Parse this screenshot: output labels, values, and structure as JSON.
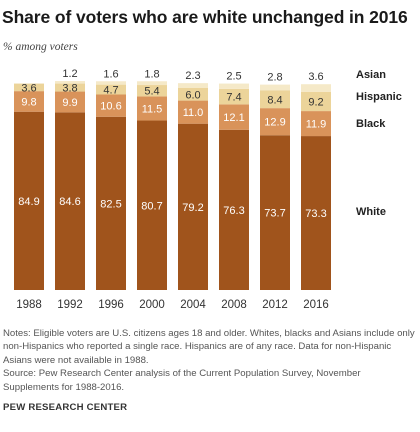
{
  "header": {
    "title": "Share of voters who are white unchanged in 2016",
    "subtitle": "% among voters"
  },
  "chart_data": {
    "type": "bar",
    "stacked": true,
    "title": "Share of voters who are white unchanged in 2016",
    "subtitle": "% among voters",
    "categories": [
      "1988",
      "1992",
      "1996",
      "2000",
      "2004",
      "2008",
      "2012",
      "2016"
    ],
    "ylim": [
      0,
      100
    ],
    "grid": false,
    "legend": "right",
    "series": [
      {
        "name": "White",
        "color": "#a0541c",
        "values": [
          84.9,
          84.6,
          82.5,
          80.7,
          79.2,
          76.3,
          73.7,
          73.3
        ]
      },
      {
        "name": "Black",
        "color": "#d9935a",
        "values": [
          9.8,
          9.9,
          10.6,
          11.5,
          11.0,
          12.1,
          12.9,
          11.9
        ]
      },
      {
        "name": "Hispanic",
        "color": "#ecd49a",
        "values": [
          3.6,
          3.8,
          4.7,
          5.4,
          6.0,
          7.4,
          8.4,
          9.2
        ]
      },
      {
        "name": "Asian",
        "color": "#f5e9c8",
        "values": [
          null,
          1.2,
          1.6,
          1.8,
          2.3,
          2.5,
          2.8,
          3.6
        ]
      }
    ]
  },
  "notes": {
    "line1": "Notes: Eligible voters are U.S. citizens ages 18 and older. Whites, blacks and Asians include only non-Hispanics who reported a single race. Hispanics are of any race. Data for non-Hispanic Asians were not available in 1988.",
    "line2": "Source: Pew Research Center analysis of the Current Population Survey, November Supplements for 1988-2016."
  },
  "footer": "PEW RESEARCH CENTER"
}
